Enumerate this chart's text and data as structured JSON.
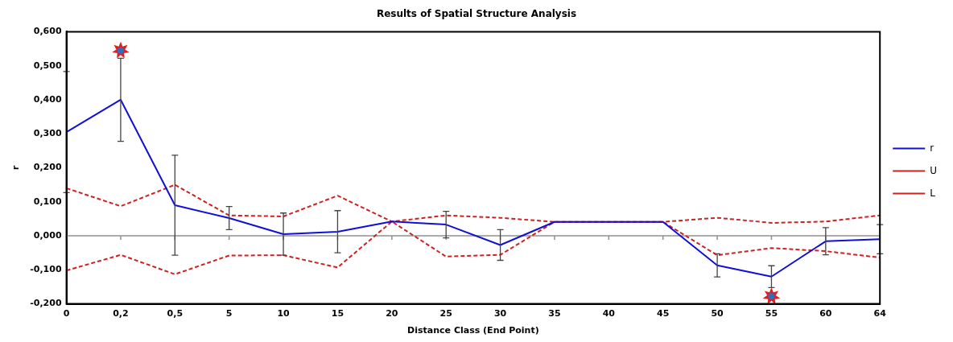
{
  "chart_data": {
    "type": "line",
    "title": "Results of Spatial Structure Analysis",
    "xlabel": "Distance Class (End Point)",
    "ylabel": "r",
    "categories": [
      "0",
      "0,2",
      "0,5",
      "5",
      "10",
      "15",
      "20",
      "25",
      "30",
      "35",
      "40",
      "45",
      "50",
      "55",
      "60",
      "64"
    ],
    "series": [
      {
        "name": "r",
        "color": "#1010d8",
        "line_style": "solid",
        "values": [
          0.305,
          0.4,
          0.09,
          0.052,
          0.005,
          0.012,
          0.042,
          0.033,
          -0.027,
          0.041,
          0.041,
          0.041,
          -0.087,
          -0.12,
          -0.016,
          -0.01
        ],
        "errors": [
          0.178,
          0.122,
          0.147,
          0.034,
          0.062,
          0.062,
          null,
          0.039,
          0.045,
          null,
          null,
          null,
          0.034,
          0.032,
          0.04,
          0.043
        ]
      },
      {
        "name": "U",
        "color": "#d02020",
        "line_style": "dashed",
        "values": [
          0.14,
          0.087,
          0.15,
          0.06,
          0.057,
          0.118,
          0.042,
          0.06,
          0.053,
          0.041,
          0.041,
          0.041,
          0.053,
          0.038,
          0.042,
          0.06
        ]
      },
      {
        "name": "L",
        "color": "#d02020",
        "line_style": "dashed",
        "values": [
          -0.102,
          -0.056,
          -0.113,
          -0.058,
          -0.057,
          -0.093,
          0.042,
          -0.061,
          -0.056,
          0.041,
          0.041,
          0.041,
          -0.057,
          -0.036,
          -0.045,
          -0.064
        ]
      },
      {
        "type": "scatter",
        "color": "#e02020",
        "marker": "star",
        "x": [
          "0,2",
          "55"
        ],
        "values": [
          0.545,
          -0.178
        ]
      }
    ],
    "ylim": [
      -0.2,
      0.6
    ],
    "yticks": [
      {
        "value": -0.2,
        "label": "-0,200"
      },
      {
        "value": -0.1,
        "label": "-0,100"
      },
      {
        "value": 0,
        "label": "0,000"
      },
      {
        "value": 0.1,
        "label": "0,100"
      },
      {
        "value": 0.2,
        "label": "0,200"
      },
      {
        "value": 0.3,
        "label": "0,300"
      },
      {
        "value": 0.4,
        "label": "0,400"
      },
      {
        "value": 0.5,
        "label": "0,500"
      },
      {
        "value": 0.6,
        "label": "0,600"
      }
    ],
    "ref_lines": [
      {
        "axis": "y",
        "value": 0,
        "color": "#909090"
      }
    ],
    "grid": false,
    "legend": "right"
  }
}
